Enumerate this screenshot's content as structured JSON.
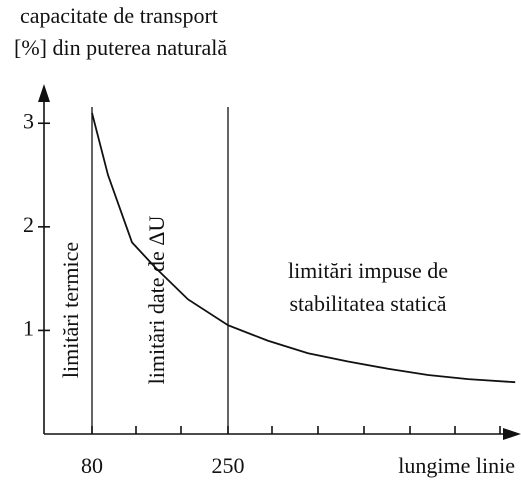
{
  "chart_data": {
    "type": "line",
    "y_label_lines": [
      "capacitate de transport",
      "[%] din puterea naturală"
    ],
    "x_label": "lungime linie",
    "x": [
      80,
      100,
      130,
      160,
      200,
      250,
      300,
      350,
      400,
      450,
      500,
      550,
      609
    ],
    "series": [
      {
        "color": "#111111",
        "values": [
          3.1,
          2.5,
          1.85,
          1.6,
          1.3,
          1.05,
          0.9,
          0.78,
          0.7,
          0.63,
          0.57,
          0.53,
          0.5
        ]
      }
    ],
    "xlim": [
      20,
      610
    ],
    "xticks": [
      80,
      250
    ],
    "ylim": [
      0,
      3.35
    ],
    "yticks": [
      1,
      2,
      3
    ],
    "vlines": [
      80,
      250
    ],
    "annotations": [
      "limitări termice",
      "limitări date de ΔU",
      "limitări impuse de",
      "stabilitatea statică"
    ]
  }
}
